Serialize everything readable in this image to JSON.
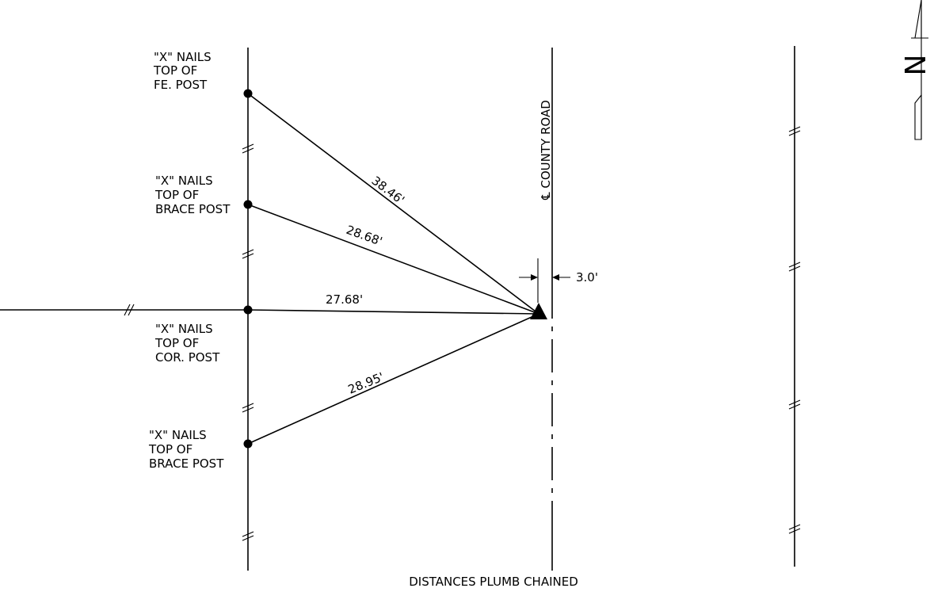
{
  "colors": {
    "line": "#000000",
    "background": "#ffffff"
  },
  "title": "DISTANCES PLUMB CHAINED",
  "road_label": "℄ COUNTY ROAD",
  "offset_label": "3.0'",
  "north_arrow_letter": "N",
  "points": [
    {
      "label": [
        "\"X\" NAILS",
        "TOP OF",
        "FE. POST"
      ]
    },
    {
      "label": [
        "\"X\" NAILS",
        "TOP OF",
        "BRACE POST"
      ]
    },
    {
      "label": [
        "\"X\" NAILS",
        "TOP OF",
        "COR. POST"
      ]
    },
    {
      "label": [
        "\"X\" NAILS",
        "TOP OF",
        "BRACE POST"
      ]
    }
  ],
  "distances": [
    "38.46'",
    "28.68'",
    "27.68'",
    "28.95'"
  ]
}
